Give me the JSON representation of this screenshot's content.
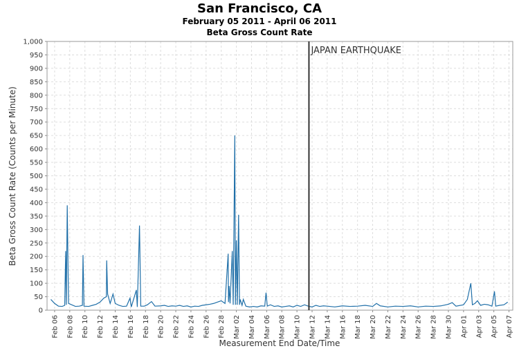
{
  "chart_data": {
    "type": "line",
    "title": "San Francisco, CA",
    "subtitle": "February 05 2011 - April 06 2011",
    "subtitle2": "Beta Gross Count Rate",
    "xlabel": "Measurement End Date/Time",
    "ylabel": "Beta Gross Count Rate (Counts per Minute)",
    "grid": true,
    "annotation": {
      "text": "JAPAN EARTHQUAKE",
      "x": "2011-03-11T14:00",
      "color": "#333333"
    },
    "xlim": [
      "2011-02-05T00:00",
      "2011-04-07T12:00"
    ],
    "xticks": [
      {
        "value": "2011-02-06T00:00",
        "label": "Feb 06"
      },
      {
        "value": "2011-02-08T00:00",
        "label": "Feb 08"
      },
      {
        "value": "2011-02-10T00:00",
        "label": "Feb 10"
      },
      {
        "value": "2011-02-12T00:00",
        "label": "Feb 12"
      },
      {
        "value": "2011-02-14T00:00",
        "label": "Feb 14"
      },
      {
        "value": "2011-02-16T00:00",
        "label": "Feb 16"
      },
      {
        "value": "2011-02-18T00:00",
        "label": "Feb 18"
      },
      {
        "value": "2011-02-20T00:00",
        "label": "Feb 20"
      },
      {
        "value": "2011-02-22T00:00",
        "label": "Feb 22"
      },
      {
        "value": "2011-02-24T00:00",
        "label": "Feb 24"
      },
      {
        "value": "2011-02-26T00:00",
        "label": "Feb 26"
      },
      {
        "value": "2011-02-28T00:00",
        "label": "Feb 28"
      },
      {
        "value": "2011-03-02T00:00",
        "label": "Mar 02"
      },
      {
        "value": "2011-03-04T00:00",
        "label": "Mar 04"
      },
      {
        "value": "2011-03-06T00:00",
        "label": "Mar 06"
      },
      {
        "value": "2011-03-08T00:00",
        "label": "Mar 08"
      },
      {
        "value": "2011-03-10T00:00",
        "label": "Mar 10"
      },
      {
        "value": "2011-03-12T00:00",
        "label": "Mar 12"
      },
      {
        "value": "2011-03-14T00:00",
        "label": "Mar 14"
      },
      {
        "value": "2011-03-16T00:00",
        "label": "Mar 16"
      },
      {
        "value": "2011-03-18T00:00",
        "label": "Mar 18"
      },
      {
        "value": "2011-03-20T00:00",
        "label": "Mar 20"
      },
      {
        "value": "2011-03-22T00:00",
        "label": "Mar 22"
      },
      {
        "value": "2011-03-24T00:00",
        "label": "Mar 24"
      },
      {
        "value": "2011-03-26T00:00",
        "label": "Mar 26"
      },
      {
        "value": "2011-03-28T00:00",
        "label": "Mar 28"
      },
      {
        "value": "2011-03-30T00:00",
        "label": "Mar 30"
      },
      {
        "value": "2011-04-01T00:00",
        "label": "Apr 01"
      },
      {
        "value": "2011-04-03T00:00",
        "label": "Apr 03"
      },
      {
        "value": "2011-04-05T00:00",
        "label": "Apr 05"
      },
      {
        "value": "2011-04-07T00:00",
        "label": "Apr 07"
      }
    ],
    "ylim": [
      0,
      1000
    ],
    "yticks": [
      0,
      50,
      100,
      150,
      200,
      250,
      300,
      350,
      400,
      450,
      500,
      550,
      600,
      650,
      700,
      750,
      800,
      850,
      900,
      950,
      {
        "value": 1000,
        "label": "1,000"
      }
    ],
    "series": [
      {
        "name": "Beta Gross Count Rate",
        "color": "#1f6fa8",
        "x": [
          "2011-02-05T12:00",
          "2011-02-06T00:00",
          "2011-02-06T12:00",
          "2011-02-07T00:00",
          "2011-02-07T08:00",
          "2011-02-07T11:00",
          "2011-02-07T13:00",
          "2011-02-07T16:00",
          "2011-02-07T20:00",
          "2011-02-08T06:00",
          "2011-02-08T18:00",
          "2011-02-09T06:00",
          "2011-02-09T16:00",
          "2011-02-09T18:00",
          "2011-02-09T21:00",
          "2011-02-10T12:00",
          "2011-02-11T00:00",
          "2011-02-11T12:00",
          "2011-02-12T00:00",
          "2011-02-12T12:00",
          "2011-02-12T20:00",
          "2011-02-12T21:00",
          "2011-02-13T00:00",
          "2011-02-13T08:00",
          "2011-02-13T17:00",
          "2011-02-14T00:00",
          "2011-02-14T12:00",
          "2011-02-15T00:00",
          "2011-02-15T12:00",
          "2011-02-15T23:00",
          "2011-02-16T03:00",
          "2011-02-16T19:00",
          "2011-02-16T22:00",
          "2011-02-17T05:00",
          "2011-02-17T09:00",
          "2011-02-17T20:00",
          "2011-02-18T06:00",
          "2011-02-18T19:00",
          "2011-02-19T06:00",
          "2011-02-20T00:00",
          "2011-02-20T12:00",
          "2011-02-21T00:00",
          "2011-02-21T12:00",
          "2011-02-22T00:00",
          "2011-02-22T12:00",
          "2011-02-23T00:00",
          "2011-02-23T12:00",
          "2011-02-24T00:00",
          "2011-02-24T12:00",
          "2011-02-25T00:00",
          "2011-02-25T12:00",
          "2011-02-26T00:00",
          "2011-02-26T12:00",
          "2011-02-27T00:00",
          "2011-02-27T12:00",
          "2011-02-28T00:00",
          "2011-02-28T12:00",
          "2011-02-28T22:00",
          "2011-02-28T23:00",
          "2011-03-01T01:00",
          "2011-03-01T04:00",
          "2011-03-01T11:00",
          "2011-03-01T14:00",
          "2011-03-01T19:00",
          "2011-03-01T21:00",
          "2011-03-02T00:00",
          "2011-03-02T03:00",
          "2011-03-02T07:00",
          "2011-03-02T10:00",
          "2011-03-02T12:00",
          "2011-03-02T18:00",
          "2011-03-02T22:00",
          "2011-03-03T06:00",
          "2011-03-03T18:00",
          "2011-03-04T06:00",
          "2011-03-04T18:00",
          "2011-03-05T06:00",
          "2011-03-05T18:00",
          "2011-03-05T22:00",
          "2011-03-06T02:00",
          "2011-03-06T12:00",
          "2011-03-07T00:00",
          "2011-03-07T12:00",
          "2011-03-08T00:00",
          "2011-03-08T12:00",
          "2011-03-09T00:00",
          "2011-03-09T12:00",
          "2011-03-10T00:00",
          "2011-03-10T12:00",
          "2011-03-11T00:00",
          "2011-03-11T12:00",
          "2011-03-12T00:00",
          "2011-03-12T12:00",
          "2011-03-13T00:00",
          "2011-03-13T12:00",
          "2011-03-14T00:00",
          "2011-03-15T00:00",
          "2011-03-16T00:00",
          "2011-03-17T00:00",
          "2011-03-18T00:00",
          "2011-03-19T00:00",
          "2011-03-20T00:00",
          "2011-03-20T12:00",
          "2011-03-21T00:00",
          "2011-03-22T00:00",
          "2011-03-23T00:00",
          "2011-03-24T00:00",
          "2011-03-25T00:00",
          "2011-03-26T00:00",
          "2011-03-27T00:00",
          "2011-03-28T00:00",
          "2011-03-29T00:00",
          "2011-03-30T00:00",
          "2011-03-30T12:00",
          "2011-03-31T00:00",
          "2011-04-01T00:00",
          "2011-04-01T12:00",
          "2011-04-01T23:00",
          "2011-04-02T04:00",
          "2011-04-02T12:00",
          "2011-04-02T20:00",
          "2011-04-03T06:00",
          "2011-04-03T18:00",
          "2011-04-04T06:00",
          "2011-04-04T18:00",
          "2011-04-05T02:00",
          "2011-04-05T06:00",
          "2011-04-05T18:00",
          "2011-04-06T08:00",
          "2011-04-06T20:00"
        ],
        "values": [
          40,
          25,
          15,
          14,
          18,
          220,
          20,
          390,
          25,
          20,
          14,
          15,
          18,
          205,
          15,
          14,
          18,
          22,
          30,
          45,
          50,
          185,
          60,
          25,
          60,
          25,
          18,
          14,
          15,
          45,
          12,
          75,
          12,
          315,
          15,
          15,
          20,
          32,
          15,
          16,
          18,
          14,
          16,
          15,
          18,
          14,
          16,
          12,
          15,
          14,
          18,
          20,
          22,
          25,
          30,
          35,
          25,
          210,
          30,
          90,
          25,
          220,
          20,
          650,
          20,
          260,
          20,
          355,
          20,
          40,
          18,
          40,
          15,
          12,
          14,
          12,
          16,
          15,
          65,
          15,
          20,
          14,
          16,
          12,
          14,
          16,
          12,
          18,
          14,
          20,
          15,
          12,
          18,
          14,
          16,
          15,
          12,
          16,
          14,
          15,
          18,
          14,
          25,
          16,
          12,
          15,
          14,
          16,
          12,
          15,
          14,
          16,
          22,
          28,
          15,
          20,
          40,
          100,
          20,
          25,
          35,
          18,
          22,
          20,
          15,
          70,
          15,
          18,
          20,
          30
        ]
      }
    ]
  }
}
